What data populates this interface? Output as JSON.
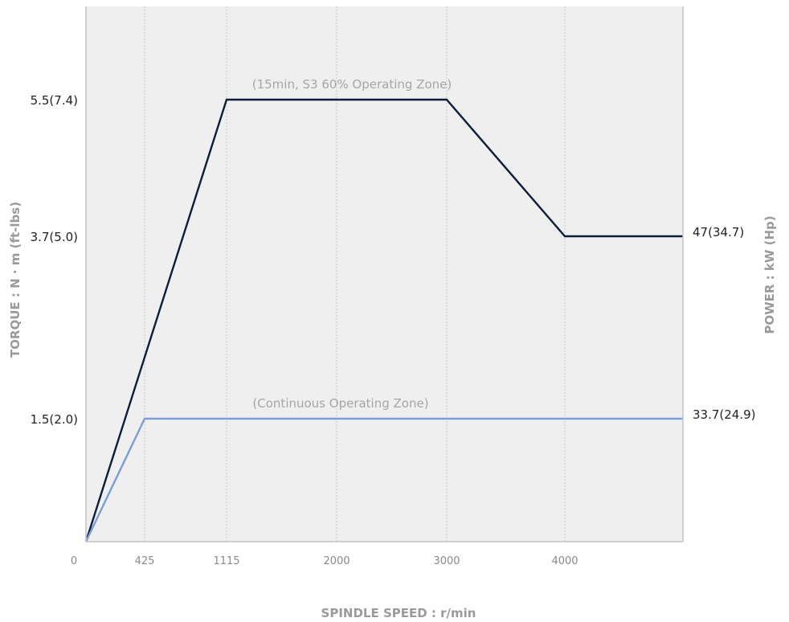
{
  "chart_data": {
    "type": "line",
    "xlabel": "SPINDLE SPEED : r/min",
    "ylabel_left": "TORQUE : N · m (ft-lbs)",
    "ylabel_right": "POWER : kW (Hp)",
    "x_ticks": [
      "0",
      "425",
      "1115",
      "2000",
      "3000",
      "4000"
    ],
    "x_tick_values": [
      0,
      425,
      1115,
      2000,
      3000,
      4000
    ],
    "xlim": [
      0,
      5000
    ],
    "y_ticks": [
      {
        "label": "1.5(2.0)",
        "value": 1.5
      },
      {
        "label": "3.7(5.0)",
        "value": 3.7
      },
      {
        "label": "5.5(7.4)",
        "value": 5.5
      }
    ],
    "ylim": [
      0,
      7
    ],
    "grid": "vertical dotted at x ticks",
    "series": [
      {
        "name": "(15min, S3 60% Operating Zone)",
        "color": "#0f1d3a",
        "x": [
          0,
          1115,
          3000,
          4000,
          5000
        ],
        "y": [
          0,
          5.5,
          5.5,
          3.7,
          3.7
        ],
        "end_label": "47(34.7)"
      },
      {
        "name": "(Continuous Operating Zone)",
        "color": "#7a9fd8",
        "x": [
          0,
          425,
          4000,
          5000
        ],
        "y": [
          0,
          1.5,
          1.5,
          1.5
        ],
        "end_label": "33.7(24.9)"
      }
    ]
  },
  "colors": {
    "plot_background": "#efefef",
    "frame": "#c4c4c4",
    "grid": "#c8c8c8"
  }
}
